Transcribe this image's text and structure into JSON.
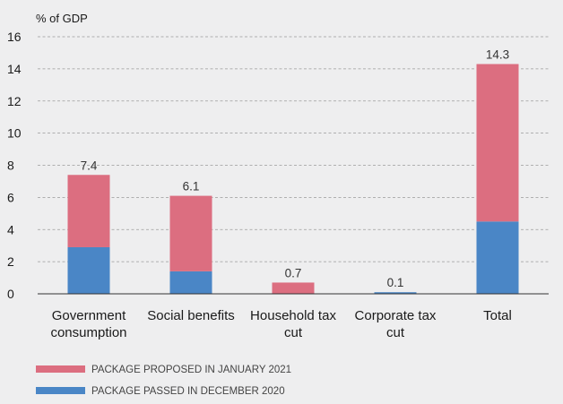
{
  "chart_data": {
    "type": "bar",
    "stacked": true,
    "unit_label": "% of GDP",
    "categories": [
      [
        "Government",
        "consumption"
      ],
      [
        "Social benefits"
      ],
      [
        "Household tax",
        "cut"
      ],
      [
        "Corporate tax",
        "cut"
      ],
      [
        "Total"
      ]
    ],
    "series": [
      {
        "name": "PACKAGE PASSED IN DECEMBER 2020",
        "color": "#4a86c6",
        "values": [
          2.9,
          1.4,
          0.0,
          0.1,
          4.5
        ]
      },
      {
        "name": "PACKAGE PROPOSED IN JANUARY 2021",
        "color": "#dc6e80",
        "values": [
          4.5,
          4.7,
          0.7,
          0.0,
          9.8
        ]
      }
    ],
    "totals": [
      "7.4",
      "6.1",
      "0.7",
      "0.1",
      "14.3"
    ],
    "ylim": [
      0,
      16
    ],
    "yticks": [
      "0",
      "2",
      "4",
      "6",
      "8",
      "10",
      "12",
      "14",
      "16"
    ],
    "grid": true,
    "legend_position": "bottom-left"
  }
}
